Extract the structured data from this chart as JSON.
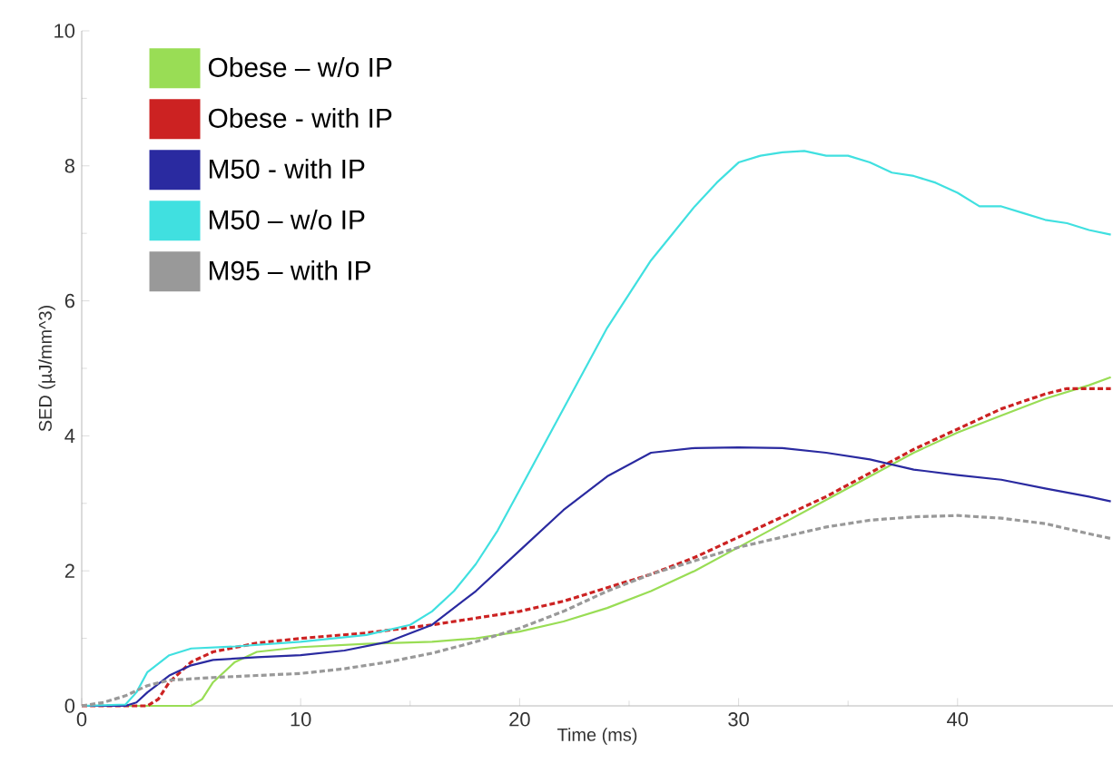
{
  "chart_data": {
    "type": "line",
    "xlabel": "Time (ms)",
    "ylabel": "SED (µJ/mm^3)",
    "xlim": [
      0,
      47.1
    ],
    "ylim": [
      0,
      10
    ],
    "xticks": [
      0,
      10,
      20,
      30,
      40
    ],
    "yticks": [
      0,
      2,
      4,
      6,
      8,
      10
    ],
    "grid": false,
    "legend": "top left",
    "marker": "none",
    "line_style": "solid",
    "series": [
      {
        "name": "Obese – w/o IP",
        "color": "#99dd55",
        "x": [
          0,
          5,
          5.5,
          6,
          7,
          8,
          10,
          13,
          16,
          18,
          20,
          22,
          24,
          26,
          28,
          30,
          32,
          34,
          36,
          38,
          40,
          42,
          44,
          46,
          47
        ],
        "values": [
          0,
          0,
          0.1,
          0.35,
          0.65,
          0.8,
          0.87,
          0.92,
          0.95,
          1.0,
          1.1,
          1.25,
          1.45,
          1.7,
          2.0,
          2.35,
          2.7,
          3.05,
          3.4,
          3.75,
          4.05,
          4.3,
          4.55,
          4.75,
          4.87
        ]
      },
      {
        "name": "Obese - with IP",
        "color": "#cc2222",
        "line_style": "dotted",
        "x": [
          0,
          3,
          3.5,
          4,
          5,
          6,
          8,
          10,
          13,
          16,
          18,
          20,
          22,
          24,
          26,
          28,
          30,
          32,
          34,
          36,
          38,
          40,
          42,
          44,
          45,
          47
        ],
        "values": [
          0,
          0,
          0.1,
          0.35,
          0.65,
          0.8,
          0.93,
          1.0,
          1.08,
          1.2,
          1.3,
          1.4,
          1.55,
          1.75,
          1.95,
          2.2,
          2.5,
          2.8,
          3.1,
          3.45,
          3.8,
          4.1,
          4.4,
          4.62,
          4.7,
          4.7
        ]
      },
      {
        "name": "M50 - with IP",
        "color": "#2a2aa0",
        "x": [
          0,
          2,
          2.5,
          3,
          4,
          5,
          6,
          8,
          10,
          12,
          14,
          16,
          18,
          20,
          22,
          24,
          26,
          28,
          30,
          32,
          34,
          36,
          38,
          40,
          42,
          44,
          46,
          47
        ],
        "values": [
          0,
          0,
          0.05,
          0.2,
          0.45,
          0.6,
          0.68,
          0.72,
          0.75,
          0.82,
          0.95,
          1.2,
          1.7,
          2.3,
          2.9,
          3.4,
          3.75,
          3.82,
          3.83,
          3.82,
          3.75,
          3.65,
          3.5,
          3.42,
          3.35,
          3.22,
          3.1,
          3.03
        ]
      },
      {
        "name": "M50 – w/o IP",
        "color": "#40e0e0",
        "x": [
          0,
          2,
          2.5,
          3,
          4,
          5,
          7,
          10,
          13,
          15,
          16,
          17,
          18,
          19,
          20,
          21,
          22,
          23,
          24,
          25,
          26,
          27,
          28,
          29,
          30,
          31,
          32,
          33,
          34,
          35,
          36,
          37,
          38,
          39,
          40,
          41,
          42,
          43,
          44,
          45,
          46,
          47
        ],
        "values": [
          0,
          0.02,
          0.2,
          0.5,
          0.75,
          0.85,
          0.88,
          0.95,
          1.05,
          1.2,
          1.4,
          1.7,
          2.1,
          2.6,
          3.2,
          3.8,
          4.4,
          5.0,
          5.6,
          6.1,
          6.6,
          7.0,
          7.4,
          7.75,
          8.05,
          8.15,
          8.2,
          8.22,
          8.15,
          8.15,
          8.05,
          7.9,
          7.85,
          7.75,
          7.6,
          7.4,
          7.4,
          7.3,
          7.2,
          7.15,
          7.05,
          6.98
        ]
      },
      {
        "name": "M95 – with IP",
        "color": "#999999",
        "line_style": "dotted",
        "x": [
          0,
          1,
          2,
          3,
          4,
          6,
          8,
          10,
          12,
          14,
          16,
          18,
          20,
          22,
          24,
          26,
          28,
          30,
          32,
          34,
          36,
          38,
          40,
          42,
          44,
          46,
          47
        ],
        "values": [
          0,
          0.05,
          0.15,
          0.3,
          0.38,
          0.42,
          0.45,
          0.48,
          0.55,
          0.65,
          0.78,
          0.95,
          1.15,
          1.4,
          1.7,
          1.95,
          2.15,
          2.35,
          2.5,
          2.65,
          2.75,
          2.8,
          2.82,
          2.78,
          2.7,
          2.55,
          2.48
        ]
      }
    ]
  }
}
